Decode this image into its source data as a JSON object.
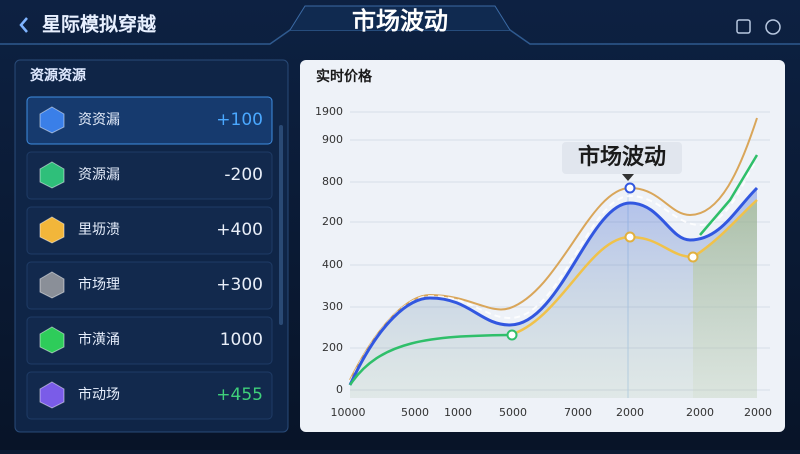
{
  "header": {
    "title": "星际模拟穿越",
    "center_title": "市场波动"
  },
  "sidebar": {
    "title": "资源资源",
    "items": [
      {
        "name": "资资漏",
        "value": "+100"
      },
      {
        "name": "资源漏",
        "value": "-200"
      },
      {
        "name": "里坜溃",
        "value": "+400"
      },
      {
        "name": "市场理",
        "value": "+300"
      },
      {
        "name": "市潢涌",
        "value": "1000"
      },
      {
        "name": "市动场",
        "value": "+455"
      }
    ]
  },
  "chart_panel": {
    "title": "实时价格",
    "y_labels": [
      "1900",
      "900",
      "800",
      "200",
      "400",
      "300",
      "200",
      "0"
    ],
    "x_labels": [
      "10000",
      "5000",
      "1000",
      "5000",
      "7000",
      "2000",
      "2000",
      "2000"
    ],
    "annotation": "市场波动"
  }
}
